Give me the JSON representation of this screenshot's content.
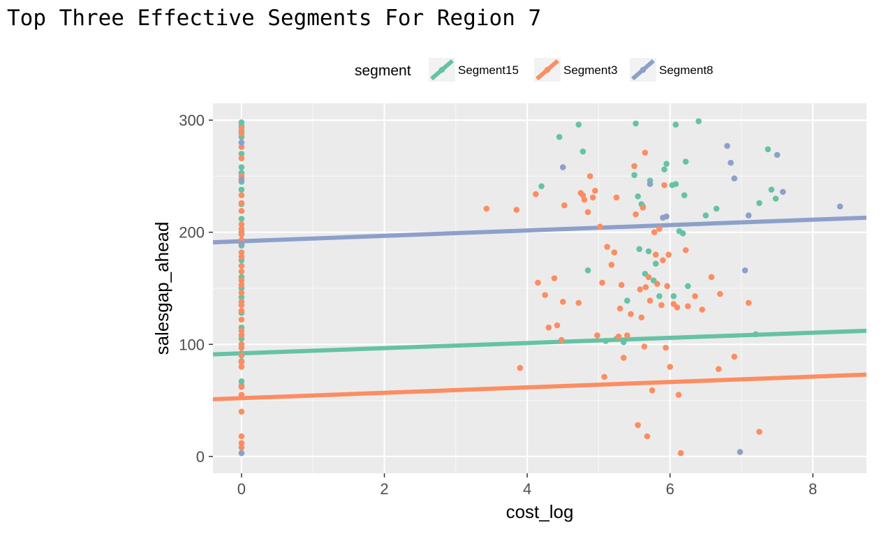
{
  "chart_data": {
    "type": "scatter",
    "title": "Top Three Effective Segments For Region 7",
    "xlabel": "cost_log",
    "ylabel": "salesgap_ahead",
    "xlim": [
      -0.4,
      8.75
    ],
    "ylim": [
      -15,
      315
    ],
    "x_ticks": [
      0,
      2,
      4,
      6,
      8
    ],
    "y_ticks": [
      0,
      100,
      200,
      300
    ],
    "grid": true,
    "legend": {
      "title": "segment",
      "position": "top"
    },
    "series": [
      {
        "name": "Segment15",
        "color": "#66c2a5",
        "trend": {
          "intercept": 92,
          "slope": 2.3
        },
        "points": [
          [
            0,
            298
          ],
          [
            0,
            295
          ],
          [
            0,
            290
          ],
          [
            0,
            285
          ],
          [
            0,
            270
          ],
          [
            0,
            258
          ],
          [
            0,
            253
          ],
          [
            0,
            245
          ],
          [
            0,
            238
          ],
          [
            0,
            225
          ],
          [
            0,
            212
          ],
          [
            0,
            200
          ],
          [
            0,
            188
          ],
          [
            0,
            175
          ],
          [
            0,
            160
          ],
          [
            0,
            150
          ],
          [
            0,
            142
          ],
          [
            0,
            128
          ],
          [
            0,
            115
          ],
          [
            0,
            105
          ],
          [
            0,
            92
          ],
          [
            0,
            85
          ],
          [
            0,
            67
          ],
          [
            0,
            63
          ],
          [
            4.2,
            241
          ],
          [
            4.45,
            285
          ],
          [
            4.72,
            296
          ],
          [
            4.78,
            272
          ],
          [
            4.85,
            166
          ],
          [
            5.1,
            103
          ],
          [
            5.25,
            105
          ],
          [
            5.35,
            102
          ],
          [
            5.4,
            139
          ],
          [
            5.5,
            251
          ],
          [
            5.52,
            297
          ],
          [
            5.55,
            232
          ],
          [
            5.57,
            185
          ],
          [
            5.6,
            225
          ],
          [
            5.62,
            223
          ],
          [
            5.65,
            163
          ],
          [
            5.7,
            183
          ],
          [
            5.72,
            246
          ],
          [
            5.77,
            157
          ],
          [
            5.8,
            172
          ],
          [
            5.85,
            143
          ],
          [
            5.92,
            256
          ],
          [
            5.95,
            261
          ],
          [
            6.03,
            242
          ],
          [
            6.05,
            143
          ],
          [
            6.08,
            243
          ],
          [
            6.08,
            296
          ],
          [
            6.13,
            201
          ],
          [
            6.18,
            199
          ],
          [
            6.2,
            233
          ],
          [
            6.22,
            263
          ],
          [
            6.25,
            152
          ],
          [
            6.4,
            299
          ],
          [
            6.5,
            215
          ],
          [
            6.65,
            221
          ],
          [
            7.2,
            109
          ],
          [
            7.25,
            226
          ],
          [
            7.37,
            274
          ],
          [
            7.42,
            238
          ],
          [
            7.48,
            230
          ]
        ]
      },
      {
        "name": "Segment3",
        "color": "#fc8d62",
        "trend": {
          "intercept": 52,
          "slope": 2.4
        },
        "points": [
          [
            0,
            293
          ],
          [
            0,
            288
          ],
          [
            0,
            276
          ],
          [
            0,
            266
          ],
          [
            0,
            250
          ],
          [
            0,
            233
          ],
          [
            0,
            226
          ],
          [
            0,
            219
          ],
          [
            0,
            207
          ],
          [
            0,
            203
          ],
          [
            0,
            198
          ],
          [
            0,
            193
          ],
          [
            0,
            182
          ],
          [
            0,
            178
          ],
          [
            0,
            170
          ],
          [
            0,
            165
          ],
          [
            0,
            157
          ],
          [
            0,
            153
          ],
          [
            0,
            146
          ],
          [
            0,
            138
          ],
          [
            0,
            135
          ],
          [
            0,
            130
          ],
          [
            0,
            122
          ],
          [
            0,
            112
          ],
          [
            0,
            108
          ],
          [
            0,
            100
          ],
          [
            0,
            97
          ],
          [
            0,
            90
          ],
          [
            0,
            84
          ],
          [
            0,
            80
          ],
          [
            0,
            62
          ],
          [
            0,
            55
          ],
          [
            0,
            40
          ],
          [
            0,
            18
          ],
          [
            0,
            12
          ],
          [
            0,
            8
          ],
          [
            3.43,
            221
          ],
          [
            3.85,
            220
          ],
          [
            3.9,
            79
          ],
          [
            4.12,
            234
          ],
          [
            4.15,
            155
          ],
          [
            4.25,
            144
          ],
          [
            4.3,
            115
          ],
          [
            4.38,
            159
          ],
          [
            4.42,
            117
          ],
          [
            4.48,
            104
          ],
          [
            4.5,
            138
          ],
          [
            4.52,
            224
          ],
          [
            4.72,
            137
          ],
          [
            4.75,
            235
          ],
          [
            4.78,
            233
          ],
          [
            4.8,
            229
          ],
          [
            4.85,
            218
          ],
          [
            4.88,
            250
          ],
          [
            4.92,
            231
          ],
          [
            4.95,
            237
          ],
          [
            4.98,
            108
          ],
          [
            5.02,
            205
          ],
          [
            5.05,
            155
          ],
          [
            5.08,
            71
          ],
          [
            5.12,
            187
          ],
          [
            5.18,
            171
          ],
          [
            5.22,
            182
          ],
          [
            5.25,
            231
          ],
          [
            5.28,
            107
          ],
          [
            5.3,
            132
          ],
          [
            5.32,
            153
          ],
          [
            5.35,
            88
          ],
          [
            5.4,
            108
          ],
          [
            5.45,
            127
          ],
          [
            5.5,
            259
          ],
          [
            5.52,
            216
          ],
          [
            5.55,
            28
          ],
          [
            5.58,
            149
          ],
          [
            5.6,
            124
          ],
          [
            5.62,
            222
          ],
          [
            5.64,
            98
          ],
          [
            5.65,
            271
          ],
          [
            5.66,
            151
          ],
          [
            5.68,
            18
          ],
          [
            5.7,
            160
          ],
          [
            5.72,
            139
          ],
          [
            5.75,
            59
          ],
          [
            5.78,
            200
          ],
          [
            5.8,
            180
          ],
          [
            5.82,
            154
          ],
          [
            5.85,
            203
          ],
          [
            5.88,
            135
          ],
          [
            5.9,
            175
          ],
          [
            5.92,
            242
          ],
          [
            5.94,
            97
          ],
          [
            5.96,
            152
          ],
          [
            5.98,
            180
          ],
          [
            6.0,
            80
          ],
          [
            6.05,
            136
          ],
          [
            6.1,
            133
          ],
          [
            6.12,
            55
          ],
          [
            6.15,
            3
          ],
          [
            6.22,
            184
          ],
          [
            6.25,
            134
          ],
          [
            6.35,
            143
          ],
          [
            6.45,
            131
          ],
          [
            6.58,
            160
          ],
          [
            6.68,
            78
          ],
          [
            6.7,
            145
          ],
          [
            6.9,
            89
          ],
          [
            7.1,
            137
          ],
          [
            7.25,
            22
          ]
        ]
      },
      {
        "name": "Segment8",
        "color": "#8da0cb",
        "trend": {
          "intercept": 192,
          "slope": 2.4
        },
        "points": [
          [
            0,
            280
          ],
          [
            0,
            247
          ],
          [
            0,
            190
          ],
          [
            0,
            3
          ],
          [
            4.5,
            258
          ],
          [
            5.72,
            243
          ],
          [
            5.9,
            213
          ],
          [
            5.95,
            214
          ],
          [
            6.8,
            277
          ],
          [
            6.85,
            262
          ],
          [
            6.9,
            248
          ],
          [
            6.98,
            4
          ],
          [
            7.05,
            166
          ],
          [
            7.1,
            215
          ],
          [
            7.5,
            269
          ],
          [
            7.58,
            236
          ],
          [
            8.38,
            223
          ]
        ]
      }
    ]
  }
}
